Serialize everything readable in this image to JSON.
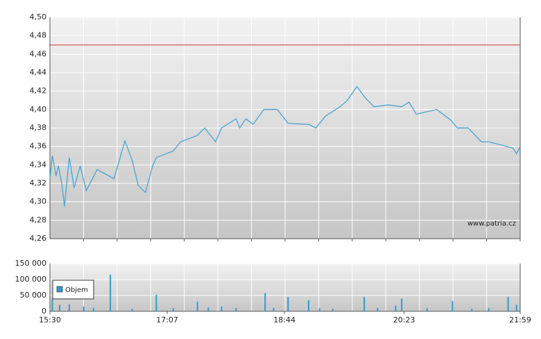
{
  "chart_data": [
    {
      "type": "line",
      "annotation": "www.patria.cz",
      "xlim": [
        "15:30",
        "21:59"
      ],
      "ylim": [
        4.26,
        4.5
      ],
      "yticks": [
        {
          "value": 4.26,
          "label": "4,26"
        },
        {
          "value": 4.28,
          "label": "4,28"
        },
        {
          "value": 4.3,
          "label": "4,30"
        },
        {
          "value": 4.32,
          "label": "4,32"
        },
        {
          "value": 4.34,
          "label": "4,34"
        },
        {
          "value": 4.36,
          "label": "4,36"
        },
        {
          "value": 4.38,
          "label": "4,38"
        },
        {
          "value": 4.4,
          "label": "4,40"
        },
        {
          "value": 4.42,
          "label": "4,42"
        },
        {
          "value": 4.44,
          "label": "4,44"
        },
        {
          "value": 4.46,
          "label": "4,46"
        },
        {
          "value": 4.48,
          "label": "4,48"
        },
        {
          "value": 4.5,
          "label": "4,50"
        }
      ],
      "grid": true,
      "reference_line": {
        "value": 4.47,
        "color": "#cc3333"
      },
      "series": [
        {
          "color": "#4aa3d0",
          "x": [
            "15:30",
            "15:32",
            "15:35",
            "15:37",
            "15:40",
            "15:42",
            "15:46",
            "15:50",
            "15:55",
            "16:00",
            "16:09",
            "16:23",
            "16:32",
            "16:38",
            "16:43",
            "16:49",
            "16:55",
            "16:58",
            "17:06",
            "17:12",
            "17:18",
            "17:26",
            "17:32",
            "17:38",
            "17:47",
            "17:52",
            "18:04",
            "18:07",
            "18:12",
            "18:18",
            "18:27",
            "18:38",
            "18:47",
            "19:04",
            "19:10",
            "19:18",
            "19:30",
            "19:36",
            "19:44",
            "19:50",
            "19:58",
            "20:10",
            "20:21",
            "20:27",
            "20:33",
            "20:50",
            "21:02",
            "21:07",
            "21:16",
            "21:27",
            "21:33",
            "21:45",
            "21:53",
            "21:56",
            "21:59"
          ],
          "values": [
            4.325,
            4.35,
            4.328,
            4.339,
            4.318,
            4.295,
            4.348,
            4.315,
            4.339,
            4.312,
            4.335,
            4.325,
            4.366,
            4.345,
            4.318,
            4.31,
            4.339,
            4.348,
            4.352,
            4.355,
            4.365,
            4.369,
            4.372,
            4.38,
            4.365,
            4.38,
            4.39,
            4.38,
            4.39,
            4.384,
            4.4,
            4.4,
            4.385,
            4.384,
            4.38,
            4.393,
            4.403,
            4.41,
            4.425,
            4.414,
            4.403,
            4.405,
            4.403,
            4.408,
            4.395,
            4.4,
            4.388,
            4.38,
            4.38,
            4.365,
            4.365,
            4.361,
            4.358,
            4.352,
            4.36
          ]
        }
      ]
    },
    {
      "type": "bar",
      "xlim": [
        "15:30",
        "21:59"
      ],
      "xticks": [
        "15:30",
        "17:07",
        "18:44",
        "20:23",
        "21:59"
      ],
      "ylim": [
        0,
        150000
      ],
      "yticks": [
        0,
        {
          "value": 50000,
          "label": "50 000"
        },
        {
          "value": 100000,
          "label": "100 000"
        },
        {
          "value": 150000,
          "label": "150 000"
        }
      ],
      "grid": true,
      "legend": "upper left",
      "series": [
        {
          "name": "Objem",
          "color": "#3399cc",
          "x": [
            "15:32",
            "15:38",
            "15:46",
            "15:58",
            "16:06",
            "16:20",
            "16:38",
            "16:58",
            "17:12",
            "17:32",
            "17:41",
            "17:52",
            "18:04",
            "18:28",
            "18:35",
            "18:47",
            "19:04",
            "19:13",
            "19:24",
            "19:50",
            "20:01",
            "20:16",
            "20:21",
            "20:42",
            "21:03",
            "21:19",
            "21:33",
            "21:49",
            "21:56"
          ],
          "values": [
            40000,
            20000,
            22000,
            15000,
            10000,
            115000,
            8000,
            52000,
            10000,
            30000,
            12000,
            15000,
            10000,
            57000,
            10000,
            45000,
            35000,
            10000,
            8000,
            45000,
            10000,
            18000,
            40000,
            10000,
            32000,
            8000,
            10000,
            45000,
            20000
          ]
        }
      ]
    }
  ]
}
